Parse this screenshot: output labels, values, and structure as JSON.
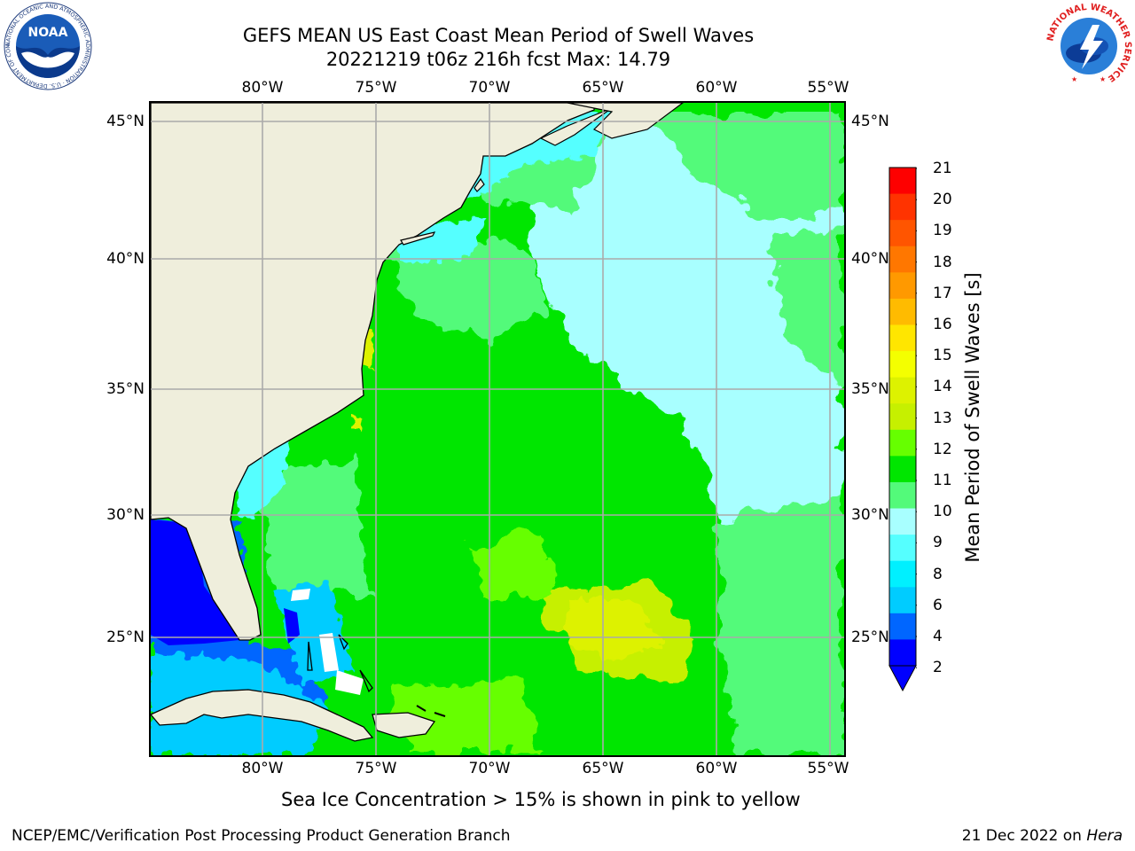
{
  "title": {
    "line1": "GEFS MEAN US East Coast Mean Period of Swell Waves",
    "line2": "20221219 t06z 216h fcst   Max: 14.79"
  },
  "map": {
    "lon_labels": [
      "80°W",
      "75°W",
      "70°W",
      "65°W",
      "60°W",
      "55°W"
    ],
    "lat_labels": [
      "45°N",
      "40°N",
      "35°N",
      "30°N",
      "25°N"
    ]
  },
  "colorbar": {
    "label": "Mean Period of Swell Waves [s]",
    "ticks": [
      "21",
      "20",
      "19",
      "18",
      "17",
      "16",
      "15",
      "14",
      "13",
      "12",
      "11",
      "10",
      "9",
      "8",
      "6",
      "4",
      "2"
    ],
    "colors": [
      "#fe0000",
      "#ff3300",
      "#ff5500",
      "#ff7700",
      "#ff9900",
      "#ffbb00",
      "#ffe600",
      "#f4ff00",
      "#ddf200",
      "#c6f000",
      "#66ff00",
      "#00e600",
      "#53fa7a",
      "#a8ffff",
      "#55ffff",
      "#00f0ff",
      "#00ccff",
      "#0066ff",
      "#0000ff"
    ],
    "under_color": "#0000ff"
  },
  "colors": {
    "land": "#efeedc",
    "grid": "#aaaaaa"
  },
  "footnote": "Sea Ice Concentration > 15% is shown in pink to yellow",
  "credit_left": "NCEP/EMC/Verification Post Processing Product Generation Branch",
  "credit_right": {
    "date": "21 Dec 2022 on ",
    "machine": "Hera"
  },
  "logos": {
    "noaa_text": "NOAA",
    "noaa_ring_text": "NATIONAL OCEANIC AND ATMOSPHERIC ADMINISTRATION · U.S. DEPARTMENT OF COMMERCE",
    "nws_ring_text": "NATIONAL WEATHER SERVICE"
  }
}
